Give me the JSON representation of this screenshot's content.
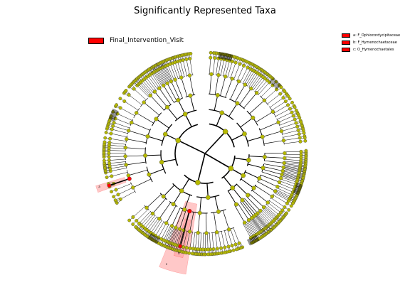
{
  "title": "Significantly Represented Taxa",
  "legend": {
    "label": "Final_Intervention_Visit",
    "color": "#ff0000"
  },
  "clade_labels": [
    {
      "code": "a",
      "name": "a: F_Ophiocordycipitaceae"
    },
    {
      "code": "b",
      "name": "b: F_Hymenochaetaceae"
    },
    {
      "code": "c",
      "name": "c: O_Hymenochaetales"
    }
  ],
  "colors": {
    "node": "#b5b800",
    "highlight": "#ff0000",
    "highlight_fill": "#ff9a9a",
    "line": "#000000"
  }
}
